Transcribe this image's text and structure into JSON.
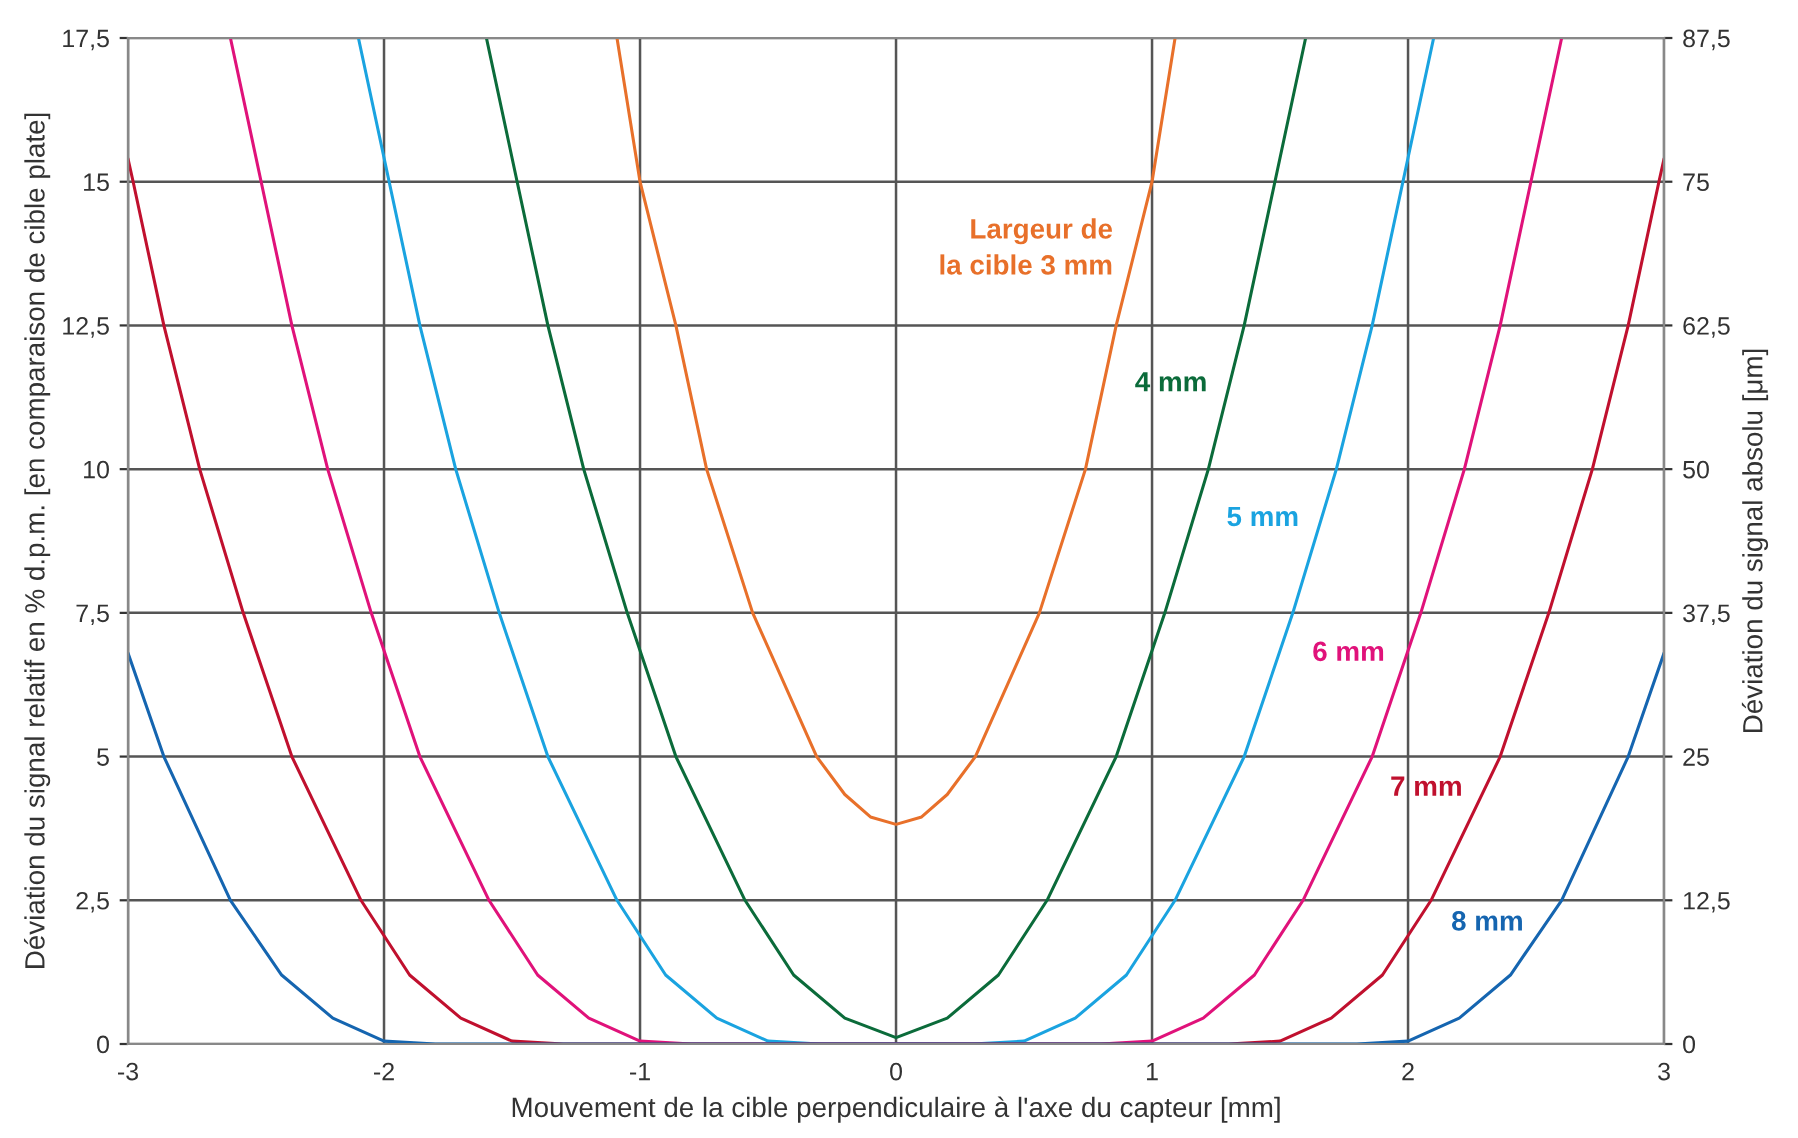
{
  "chart_data": {
    "type": "line",
    "xlabel": "Mouvement de la cible perpendiculaire à l'axe du capteur [mm]",
    "ylabel": "Déviation du signal relatif en % d.p.m. [en comparaison de cible plate]",
    "y2label": "Déviation du signal absolu [μm]",
    "xlim": [
      -3,
      3
    ],
    "xticks": [
      -3,
      -2,
      -1,
      0,
      1,
      2,
      3
    ],
    "ylim": [
      0,
      17.5
    ],
    "yticks": [
      {
        "value": 0,
        "label": "0"
      },
      {
        "value": 2.5,
        "label": "2,5"
      },
      {
        "value": 5,
        "label": "5"
      },
      {
        "value": 7.5,
        "label": "7,5"
      },
      {
        "value": 10,
        "label": "10"
      },
      {
        "value": 12.5,
        "label": "12,5"
      },
      {
        "value": 15,
        "label": "15"
      },
      {
        "value": 17.5,
        "label": "17,5"
      }
    ],
    "y2lim": [
      0,
      87.5
    ],
    "y2ticks": [
      {
        "value": 0,
        "label": "0"
      },
      {
        "value": 12.5,
        "label": "12,5"
      },
      {
        "value": 25,
        "label": "25"
      },
      {
        "value": 37.5,
        "label": "37,5"
      },
      {
        "value": 50,
        "label": "50"
      },
      {
        "value": 62.5,
        "label": "62,5"
      },
      {
        "value": 75,
        "label": "75"
      },
      {
        "value": 87.5,
        "label": "87,5"
      }
    ],
    "grid": true,
    "legend": false,
    "marker": "none",
    "line_style": "solid",
    "series": [
      {
        "name": "Largeur de\nla cible 3 mm",
        "color": "#e8702a",
        "x": [
          -1.09,
          -1.0,
          -0.86,
          -0.74,
          -0.56,
          -0.31,
          -0.2,
          -0.1,
          0,
          0.1,
          0.2,
          0.31,
          0.56,
          0.74,
          0.86,
          1.0,
          1.09
        ],
        "values": [
          17.5,
          15,
          12.5,
          10,
          7.5,
          5,
          4.34,
          3.95,
          3.82,
          3.95,
          4.34,
          5,
          7.5,
          10,
          12.5,
          15,
          17.5
        ]
      },
      {
        "name": "4 mm",
        "color": "#0b6b3a",
        "x": [
          -1.6,
          -1.48,
          -1.36,
          -1.22,
          -1.05,
          -0.86,
          -0.59,
          -0.4,
          -0.2,
          0,
          0.2,
          0.4,
          0.59,
          0.86,
          1.05,
          1.22,
          1.36,
          1.48,
          1.6
        ],
        "values": [
          17.5,
          15,
          12.5,
          10,
          7.5,
          5,
          2.5,
          1.2,
          0.45,
          0.11,
          0.45,
          1.2,
          2.5,
          5,
          7.5,
          10,
          12.5,
          15,
          17.5
        ]
      },
      {
        "name": "5 mm",
        "color": "#1aa3e0",
        "x": [
          -2.1,
          -1.98,
          -1.86,
          -1.72,
          -1.55,
          -1.36,
          -1.09,
          -0.9,
          -0.7,
          -0.5,
          -0.3,
          0,
          0.3,
          0.5,
          0.7,
          0.9,
          1.09,
          1.36,
          1.55,
          1.72,
          1.86,
          1.98,
          2.1
        ],
        "values": [
          17.5,
          15,
          12.5,
          10,
          7.5,
          5,
          2.5,
          1.2,
          0.45,
          0.05,
          0,
          0,
          0,
          0.05,
          0.45,
          1.2,
          2.5,
          5,
          7.5,
          10,
          12.5,
          15,
          17.5
        ]
      },
      {
        "name": "6 mm",
        "color": "#e0127a",
        "x": [
          -2.6,
          -2.48,
          -2.36,
          -2.22,
          -2.05,
          -1.86,
          -1.59,
          -1.4,
          -1.2,
          -1.0,
          -0.8,
          0,
          0.8,
          1.0,
          1.2,
          1.4,
          1.59,
          1.86,
          2.05,
          2.22,
          2.36,
          2.48,
          2.6
        ],
        "values": [
          17.5,
          15,
          12.5,
          10,
          7.5,
          5,
          2.5,
          1.2,
          0.45,
          0.05,
          0,
          0,
          0,
          0.05,
          0.45,
          1.2,
          2.5,
          5,
          7.5,
          10,
          12.5,
          15,
          17.5
        ]
      },
      {
        "name": "7 mm",
        "color": "#c0102e",
        "x": [
          -3.0,
          -2.98,
          -2.86,
          -2.72,
          -2.55,
          -2.36,
          -2.09,
          -1.9,
          -1.7,
          -1.5,
          -1.3,
          0,
          1.3,
          1.5,
          1.7,
          1.9,
          2.09,
          2.36,
          2.55,
          2.72,
          2.86,
          2.98,
          3.0
        ],
        "values": [
          15.4,
          15,
          12.5,
          10,
          7.5,
          5,
          2.5,
          1.2,
          0.45,
          0.05,
          0,
          0,
          0,
          0.05,
          0.45,
          1.2,
          2.5,
          5,
          7.5,
          10,
          12.5,
          15,
          15.4
        ]
      },
      {
        "name": "8 mm",
        "color": "#1565b0",
        "x": [
          -3.0,
          -2.86,
          -2.6,
          -2.4,
          -2.2,
          -2.0,
          -1.8,
          0,
          1.8,
          2.0,
          2.2,
          2.4,
          2.6,
          2.86,
          3.0
        ],
        "values": [
          6.8,
          5,
          2.5,
          1.2,
          0.45,
          0.05,
          0,
          0,
          0,
          0.05,
          0.45,
          1.2,
          2.5,
          5,
          6.8
        ]
      }
    ]
  }
}
